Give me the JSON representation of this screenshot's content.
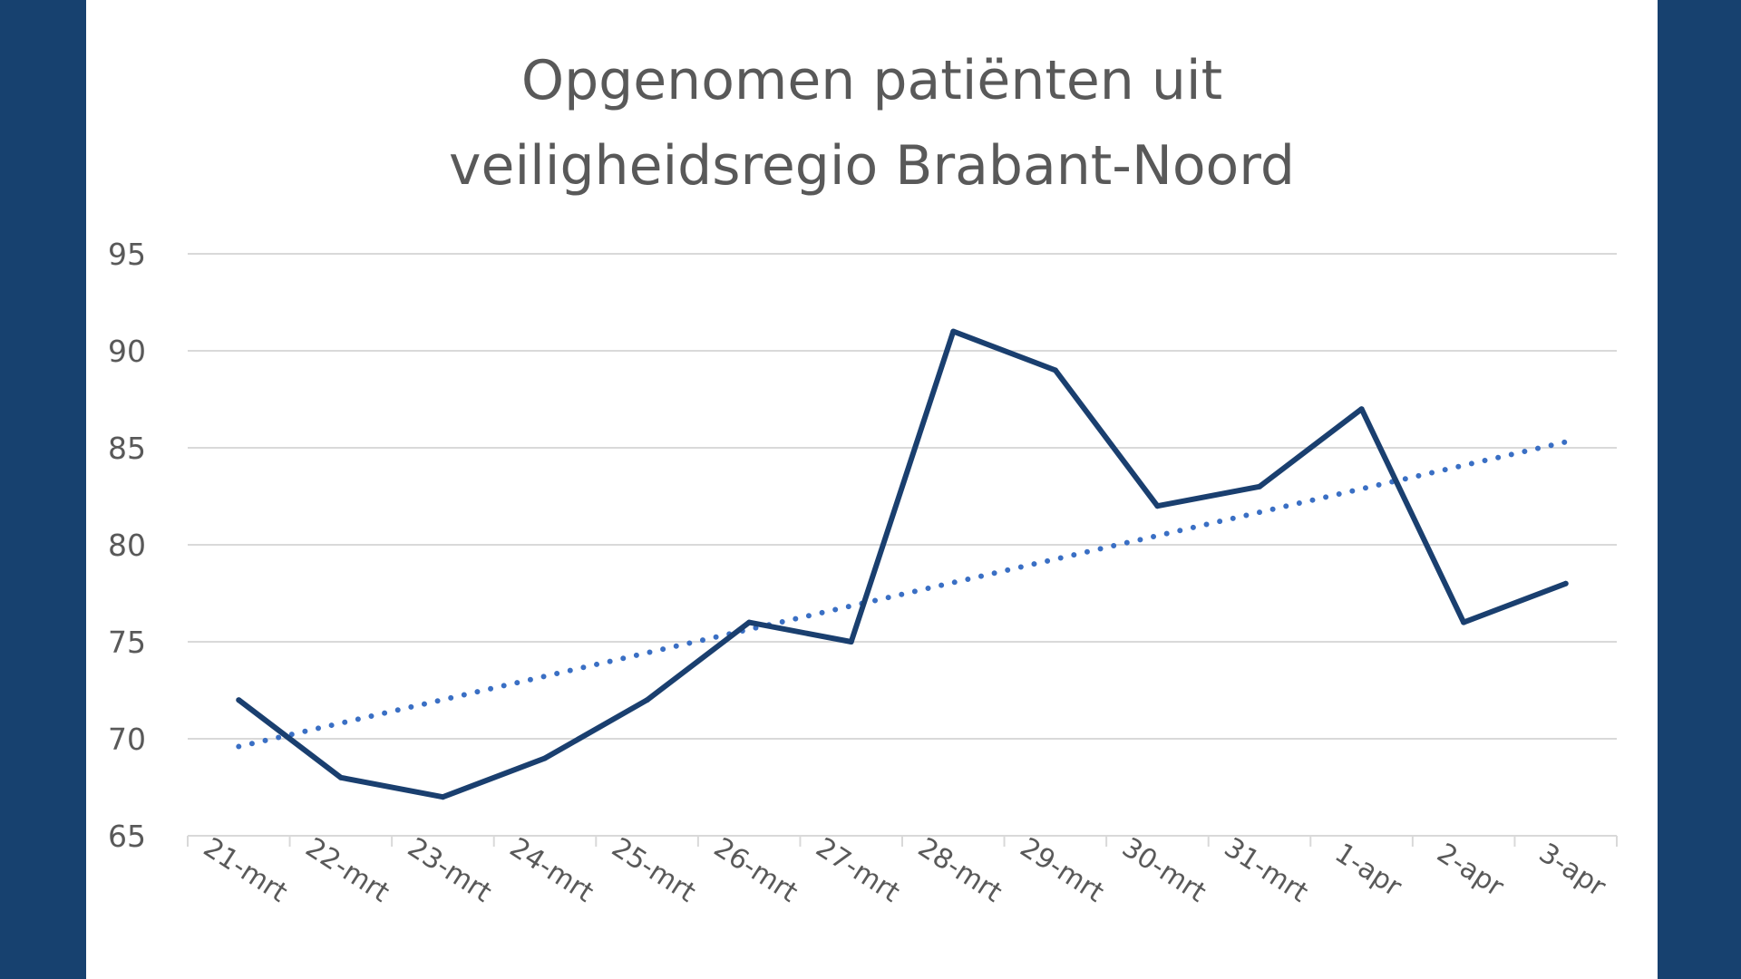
{
  "chart_data": {
    "type": "line",
    "title": [
      "Opgenomen patiënten uit",
      "veiligheidsregio Brabant-Noord"
    ],
    "xlabel": "",
    "ylabel": "",
    "categories": [
      "21-mrt",
      "22-mrt",
      "23-mrt",
      "24-mrt",
      "25-mrt",
      "26-mrt",
      "27-mrt",
      "28-mrt",
      "29-mrt",
      "30-mrt",
      "31-mrt",
      "1-apr",
      "2-apr",
      "3-apr"
    ],
    "series": [
      {
        "values": [
          72,
          68,
          67,
          69,
          72,
          76,
          75,
          91,
          89,
          82,
          83,
          87,
          76,
          78
        ],
        "color": "#1a3f6f",
        "style": "solid"
      }
    ],
    "trendline": {
      "type": "linear",
      "start": 69.6,
      "end": 85.3,
      "color": "#3a6fc4",
      "style": "dotted"
    },
    "ylim": [
      65,
      95
    ],
    "yticks": [
      65,
      70,
      75,
      80,
      85,
      90,
      95
    ],
    "grid": true,
    "legend": "none"
  }
}
